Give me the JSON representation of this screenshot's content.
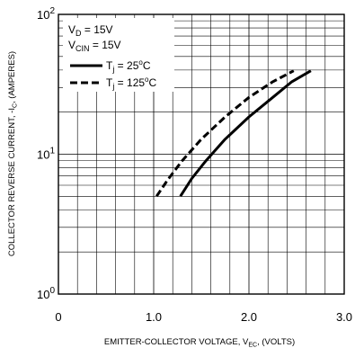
{
  "chart_data": {
    "type": "line",
    "title": "",
    "xlabel": {
      "text": "EMITTER-COLLECTOR VOLTAGE, V",
      "sub": "EC",
      "suffix": ", (VOLTS)"
    },
    "ylabel": {
      "text": "COLLECTOR REVERSE CURRENT, -I",
      "sub": "C",
      "suffix": ", (AMPERES)"
    },
    "xlim": [
      0,
      3.0
    ],
    "ylim": [
      1,
      100
    ],
    "yscale": "log",
    "grid": true,
    "x_ticks": [
      {
        "value": 0,
        "label": "0"
      },
      {
        "value": 1.0,
        "label": "1.0"
      },
      {
        "value": 2.0,
        "label": "2.0"
      },
      {
        "value": 3.0,
        "label": "3.0"
      }
    ],
    "y_ticks": [
      {
        "value": 1,
        "base": "10",
        "exp": "0"
      },
      {
        "value": 10,
        "base": "10",
        "exp": "1"
      },
      {
        "value": 100,
        "base": "10",
        "exp": "2"
      }
    ],
    "conditions": [
      {
        "main": "V",
        "sub": "D",
        "rest": " = 15V"
      },
      {
        "main": "V",
        "sub": "CIN",
        "rest": " = 15V"
      }
    ],
    "legend_position": "top-left",
    "series": [
      {
        "name": "Tj = 25°C",
        "label": {
          "main": "T",
          "sub": "j",
          "rest": " = 25",
          "sup": "o",
          "tail": "C"
        },
        "style": "solid",
        "x": [
          1.28,
          1.4,
          1.55,
          1.75,
          2.0,
          2.25,
          2.45,
          2.65
        ],
        "y": [
          5,
          6.7,
          9,
          12.8,
          18.5,
          25.5,
          33,
          39.5
        ]
      },
      {
        "name": "Tj = 125°C",
        "label": {
          "main": "T",
          "sub": "j",
          "rest": " = 125",
          "sup": "o",
          "tail": "C"
        },
        "style": "dashed",
        "x": [
          1.03,
          1.15,
          1.3,
          1.5,
          1.75,
          2.0,
          2.25,
          2.47
        ],
        "y": [
          5,
          6.6,
          9,
          12.8,
          18.5,
          25.5,
          33,
          39.5
        ]
      }
    ]
  }
}
